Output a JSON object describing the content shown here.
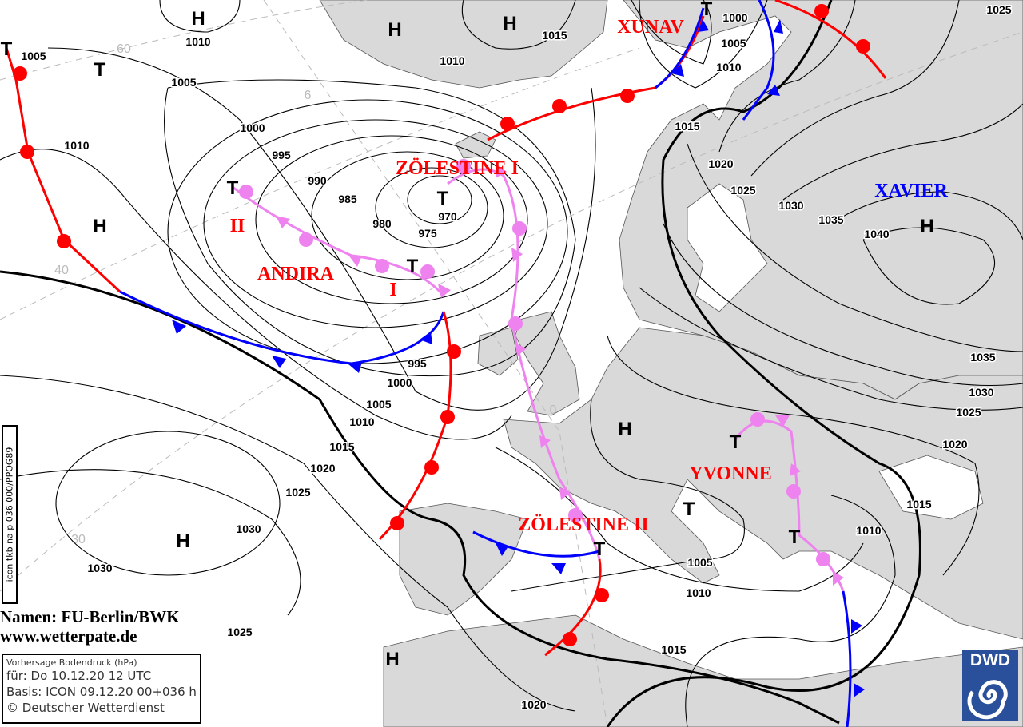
{
  "map": {
    "type": "surface pressure analysis/forecast",
    "colors": {
      "land": "#d9d9d9",
      "sea": "#ffffff",
      "warm_front": "#ff0000",
      "cold_front": "#0000ff",
      "occlusion": "#ee82ee",
      "name_low": "#ff0000",
      "name_high": "#0000ff"
    },
    "isobar_labels": [
      "1005",
      "1010",
      "1005",
      "1010",
      "1000",
      "995",
      "990",
      "985",
      "980",
      "975",
      "970",
      "1010",
      "1015",
      "1000",
      "1005",
      "1010",
      "1015",
      "1020",
      "1025",
      "1030",
      "1035",
      "1040",
      "1025",
      "1035",
      "1030",
      "1025",
      "1020",
      "1015",
      "1010",
      "995",
      "1000",
      "1005",
      "1010",
      "1015",
      "1020",
      "1025",
      "1030",
      "1030",
      "1025",
      "1005",
      "1010",
      "1015",
      "1020"
    ],
    "pressure_centers": [
      "H",
      "H",
      "H",
      "H",
      "H",
      "H",
      "H",
      "H",
      "T",
      "T",
      "T",
      "T",
      "T",
      "T",
      "T",
      "T",
      "T",
      "T"
    ],
    "system_names": [
      "XUNAV",
      "ZÖLESTINE I",
      "II",
      "ANDIRA",
      "I",
      "XAVIER",
      "YVONNE",
      "ZÖLESTINE II"
    ],
    "grid_labels": [
      "60",
      "6",
      "40",
      "30",
      "0"
    ]
  },
  "credit": {
    "line1": "Namen: FU-Berlin/BWK",
    "line2": "www.wetterpate.de"
  },
  "side_code": "icon tkb na p 036 000/PPOG89",
  "infobox": {
    "title": "Vorhersage Bodendruck (hPa)",
    "valid": "für:  Do 10.12.20  12 UTC",
    "basis": "Basis: ICON  09.12.20 00+036 h",
    "copyright": "© Deutscher Wetterdienst"
  },
  "logo": {
    "text": "DWD",
    "icon": "dwd-spiral-logo"
  }
}
